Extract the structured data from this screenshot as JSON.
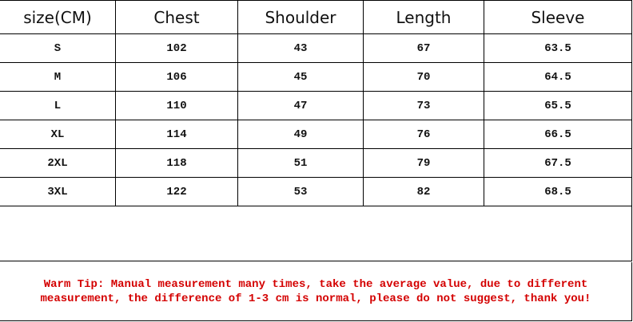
{
  "headers": [
    "size(CM)",
    "Chest",
    "Shoulder",
    "Length",
    "Sleeve"
  ],
  "rows": [
    [
      "S",
      "102",
      "43",
      "67",
      "63.5"
    ],
    [
      "M",
      "106",
      "45",
      "70",
      "64.5"
    ],
    [
      "L",
      "110",
      "47",
      "73",
      "65.5"
    ],
    [
      "XL",
      "114",
      "49",
      "76",
      "66.5"
    ],
    [
      "2XL",
      "118",
      "51",
      "79",
      "67.5"
    ],
    [
      "3XL",
      "122",
      "53",
      "82",
      "68.5"
    ]
  ],
  "tip": {
    "line1": "Warm Tip: Manual measurement many times, take the average value, due to different",
    "line2": "measurement, the difference of 1-3 cm is normal, please do not suggest, thank you!",
    "color": "#d40000"
  }
}
